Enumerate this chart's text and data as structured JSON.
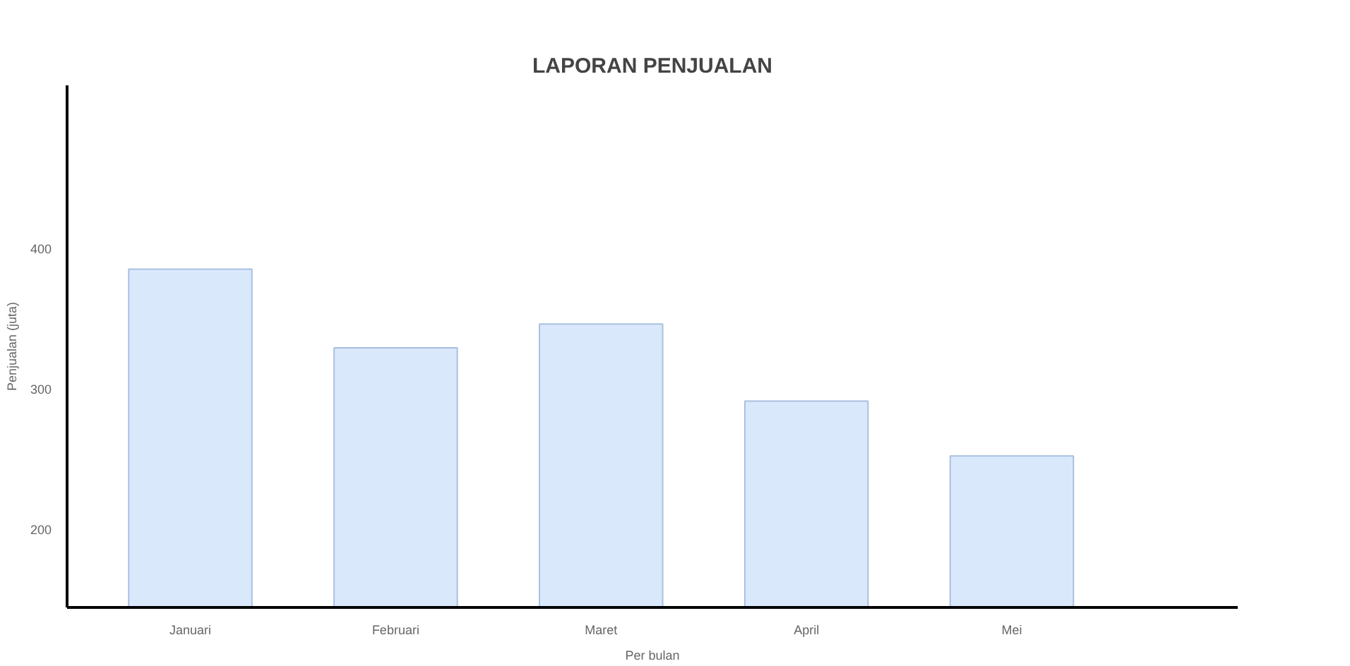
{
  "chart_data": {
    "type": "bar",
    "title": "LAPORAN PENJUALAN",
    "xlabel": "Per bulan",
    "ylabel": "Penjualan (juta)",
    "categories": [
      "Januari",
      "Februari",
      "Maret",
      "April",
      "Mei"
    ],
    "values": [
      385,
      329,
      346,
      291,
      252
    ],
    "color": "#dae8fc",
    "ylim": [
      144,
      516
    ],
    "yticks": [
      200,
      300,
      400
    ],
    "grid": false
  }
}
